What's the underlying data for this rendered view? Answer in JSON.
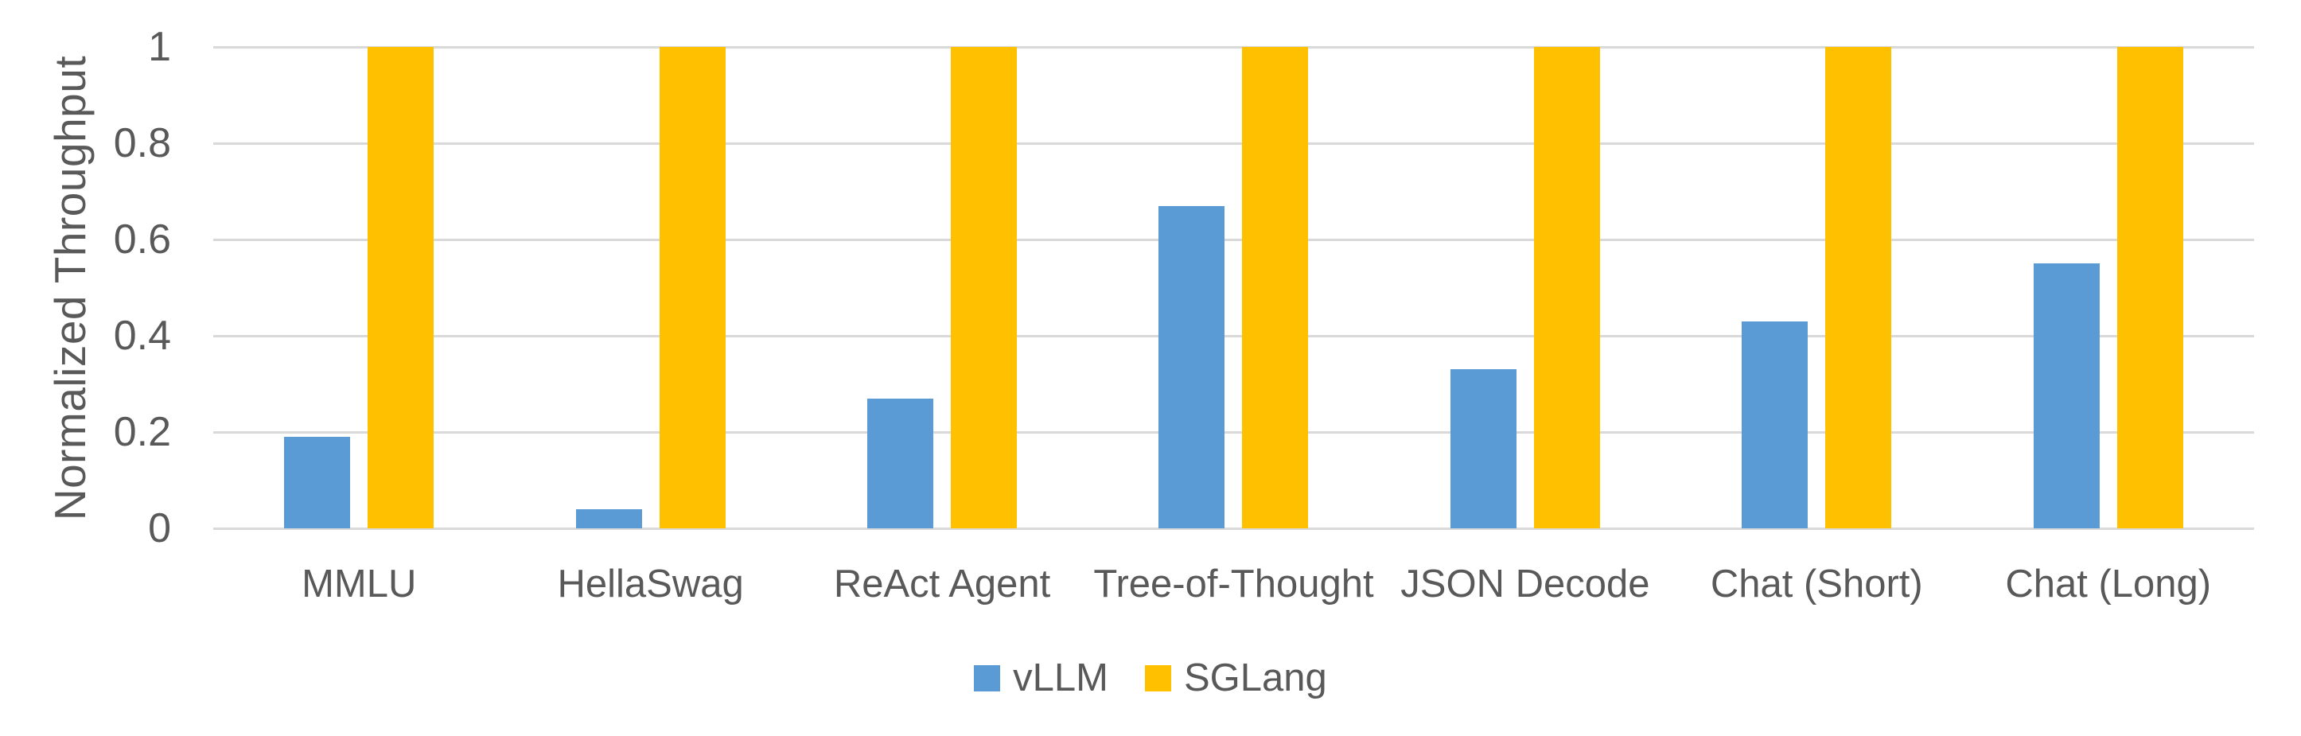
{
  "chart_data": {
    "type": "bar",
    "title": "",
    "ylabel": "Normalized Throughput",
    "xlabel": "",
    "categories": [
      "MMLU",
      "HellaSwag",
      "ReAct Agent",
      "Tree-of-Thought",
      "JSON Decode",
      "Chat (Short)",
      "Chat (Long)"
    ],
    "series": [
      {
        "name": "vLLM",
        "color": "#5B9BD5",
        "values": [
          0.19,
          0.04,
          0.27,
          0.67,
          0.33,
          0.43,
          0.55
        ]
      },
      {
        "name": "SGLang",
        "color": "#FFC000",
        "values": [
          1,
          1,
          1,
          1,
          1,
          1,
          1
        ]
      }
    ],
    "ylim": [
      0,
      1
    ],
    "yticks": [
      0,
      0.2,
      0.4,
      0.6,
      0.8,
      1
    ],
    "ytick_labels": [
      "0",
      "0.2",
      "0.4",
      "0.6",
      "0.8",
      "1"
    ],
    "grid": true,
    "legend_position": "bottom"
  },
  "styles": {
    "grid_color": "#D9D9D9",
    "text_color": "#595959",
    "background": "#FFFFFF"
  }
}
